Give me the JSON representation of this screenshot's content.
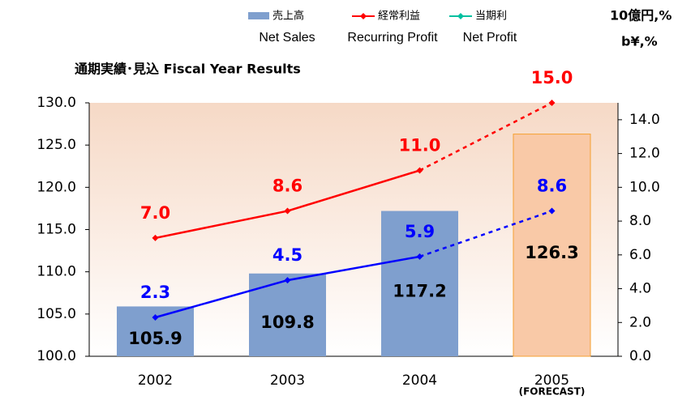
{
  "chart_data": {
    "type": "bar_line",
    "title": "通期実績･見込 Fiscal Year Results",
    "units": [
      "10億円,%",
      "b¥,%"
    ],
    "categories": [
      "2002",
      "2003",
      "2004",
      "2005"
    ],
    "category_notes": [
      null,
      null,
      null,
      "(FORECAST)"
    ],
    "ylim": [
      100,
      130
    ],
    "yticks": [
      {
        "value": 100,
        "label": "100.0"
      },
      {
        "value": 105,
        "label": "105.0"
      },
      {
        "value": 110,
        "label": "110.0"
      },
      {
        "value": 115,
        "label": "115.0"
      },
      {
        "value": 120,
        "label": "120.0"
      },
      {
        "value": 125,
        "label": "125.0"
      },
      {
        "value": 130,
        "label": "130.0"
      }
    ],
    "y2lim": [
      0,
      15
    ],
    "y2ticks": [
      {
        "value": 0,
        "label": "0.0"
      },
      {
        "value": 2,
        "label": "2.0"
      },
      {
        "value": 4,
        "label": "4.0"
      },
      {
        "value": 6,
        "label": "6.0"
      },
      {
        "value": 8,
        "label": "8.0"
      },
      {
        "value": 10,
        "label": "10.0"
      },
      {
        "value": 12,
        "label": "12.0"
      },
      {
        "value": 14,
        "label": "14.0"
      }
    ],
    "series": [
      {
        "name": "売上高",
        "name_en": "Net Sales",
        "type": "bar",
        "color": "#7f9fce",
        "colors": [
          "#7f9fce",
          "#7f9fce",
          "#7f9fce",
          "#f9c9a7"
        ],
        "values": [
          105.9,
          109.8,
          117.2,
          126.3
        ]
      },
      {
        "name": "経常利益",
        "name_en": "Recurring Profit",
        "type": "line",
        "axis": "y2",
        "color": "#ff0000",
        "values": [
          7.0,
          8.6,
          11.0,
          15.0
        ],
        "value_labels": [
          "7.0",
          "8.6",
          "11.0",
          "15.0"
        ]
      },
      {
        "name": "当期利",
        "name_en": "Net Profit",
        "type": "line",
        "axis": "y2",
        "color": "#0000ff",
        "legend_color": "#00c0a0",
        "values": [
          2.3,
          4.5,
          5.9,
          8.6
        ]
      }
    ]
  }
}
